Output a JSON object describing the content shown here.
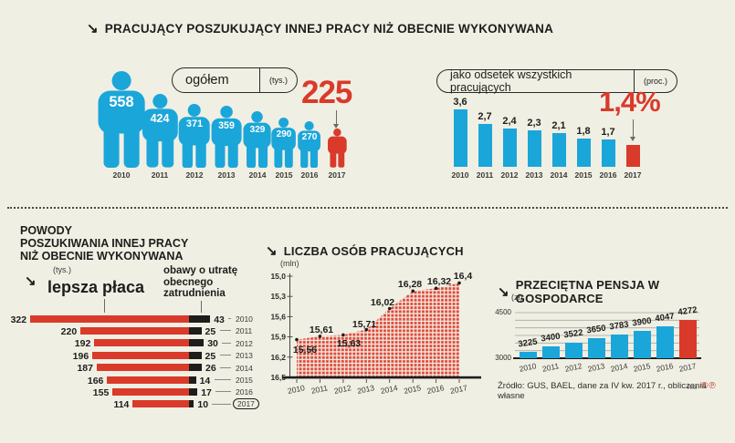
{
  "page": {
    "title": "PRACUJĄCY POSZUKUJĄCY INNEJ PRACY NIŻ OBECNIE WYKONYWANA",
    "arrow_glyph": "↘",
    "source": "Źródło: GUS, BAEL, dane za IV kw. 2017 r., obliczenia własne",
    "credit": "RM",
    "copyright_marks": "©℗"
  },
  "colors": {
    "blue": "#1ba6d9",
    "red": "#d93a2a",
    "black_bar": "#1d1d1b",
    "background": "#f0efe4"
  },
  "chart_data": [
    {
      "id": "total_seeking",
      "type": "pictogram-bar",
      "title": "ogółem",
      "unit": "(tys.)",
      "categories": [
        "2010",
        "2011",
        "2012",
        "2013",
        "2014",
        "2015",
        "2016",
        "2017"
      ],
      "values": [
        558,
        424,
        371,
        359,
        329,
        290,
        270,
        225
      ],
      "highlight_index": 7,
      "highlight_value_label": "225"
    },
    {
      "id": "percent_of_working",
      "type": "bar",
      "title": "jako odsetek wszystkich pracujących",
      "unit": "(proc.)",
      "categories": [
        "2010",
        "2011",
        "2012",
        "2013",
        "2014",
        "2015",
        "2016",
        "2017"
      ],
      "values": [
        3.6,
        2.7,
        2.4,
        2.3,
        2.1,
        1.8,
        1.7,
        1.4
      ],
      "value_labels": [
        "3,6",
        "2,7",
        "2,4",
        "2,3",
        "2,1",
        "1,8",
        "1,7",
        "1,4"
      ],
      "highlight_index": 7,
      "highlight_label": "1,4%"
    },
    {
      "id": "reasons",
      "type": "diverging-bar",
      "title": "POWODY POSZUKIWANIA INNEJ PRACY NIŻ OBECNIE WYKONYWANA",
      "title_lines": [
        "POWODY",
        "POSZUKIWANIA INNEJ PRACY",
        "NIŻ OBECNIE WYKONYWANA"
      ],
      "unit": "(tys.)",
      "categories": [
        "2010",
        "2011",
        "2012",
        "2013",
        "2014",
        "2015",
        "2016",
        "2017"
      ],
      "series": [
        {
          "name": "lepsza płaca",
          "values": [
            322,
            220,
            192,
            196,
            187,
            166,
            155,
            114
          ]
        },
        {
          "name": "obawy o utratę obecnego zatrudnienia",
          "values": [
            43,
            25,
            30,
            25,
            26,
            14,
            17,
            10
          ]
        }
      ],
      "highlight_category": "2017"
    },
    {
      "id": "employment",
      "type": "area",
      "title": "LICZBA OSÓB PRACUJĄCYCH",
      "unit": "(mln)",
      "x": [
        "2010",
        "2011",
        "2012",
        "2013",
        "2014",
        "2015",
        "2016",
        "2017"
      ],
      "values": [
        15.56,
        15.61,
        15.63,
        15.71,
        16.02,
        16.28,
        16.32,
        16.4
      ],
      "value_labels": [
        "15,56",
        "15,61",
        "15,63",
        "15,71",
        "16,02",
        "16,28",
        "16,32",
        "16,4"
      ],
      "ylim": [
        15.0,
        16.5
      ],
      "yticks": [
        "16,5",
        "16,2",
        "15,9",
        "15,6",
        "15,3",
        "15,0"
      ]
    },
    {
      "id": "salary",
      "type": "bar",
      "title": "PRZECIĘTNA PENSJA W GOSPODARCE",
      "unit": "(zł)",
      "categories": [
        "2010",
        "2011",
        "2012",
        "2013",
        "2014",
        "2015",
        "2016",
        "2017"
      ],
      "values": [
        3225,
        3400,
        3522,
        3650,
        3783,
        3900,
        4047,
        4272
      ],
      "ylim": [
        3000,
        4500
      ],
      "yticks": [
        "4500",
        "3000"
      ],
      "highlight_index": 7
    }
  ]
}
